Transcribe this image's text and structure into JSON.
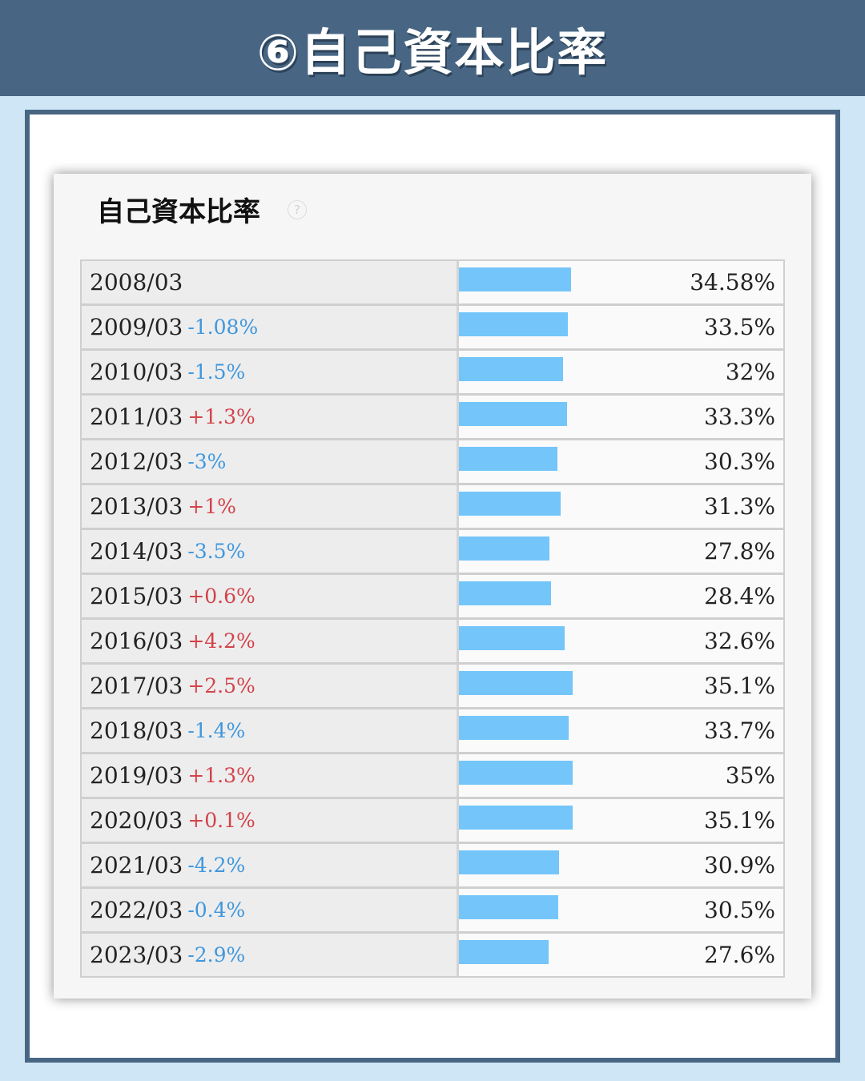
{
  "header": {
    "title": "⑥自己資本比率"
  },
  "card": {
    "title": "自己資本比率",
    "help_glyph": "?"
  },
  "chart_data": {
    "type": "bar",
    "orientation": "horizontal",
    "title": "自己資本比率",
    "bar_color": "#74c6fa",
    "positive_change_color": "#d3424a",
    "negative_change_color": "#3f97dd",
    "categories": [
      "2008/03",
      "2009/03",
      "2010/03",
      "2011/03",
      "2012/03",
      "2013/03",
      "2014/03",
      "2015/03",
      "2016/03",
      "2017/03",
      "2018/03",
      "2019/03",
      "2020/03",
      "2021/03",
      "2022/03",
      "2023/03"
    ],
    "values": [
      34.58,
      33.5,
      32,
      33.3,
      30.3,
      31.3,
      27.8,
      28.4,
      32.6,
      35.1,
      33.7,
      35,
      35.1,
      30.9,
      30.5,
      27.6
    ],
    "value_labels": [
      "34.58%",
      "33.5%",
      "32%",
      "33.3%",
      "30.3%",
      "31.3%",
      "27.8%",
      "28.4%",
      "32.6%",
      "35.1%",
      "33.7%",
      "35%",
      "35.1%",
      "30.9%",
      "30.5%",
      "27.6%"
    ],
    "change_labels": [
      "",
      "-1.08%",
      "-1.5%",
      "+1.3%",
      "-3%",
      "+1%",
      "-3.5%",
      "+0.6%",
      "+4.2%",
      "+2.5%",
      "-1.4%",
      "+1.3%",
      "+0.1%",
      "-4.2%",
      "-0.4%",
      "-2.9%"
    ],
    "xlim": [
      0,
      100
    ]
  }
}
